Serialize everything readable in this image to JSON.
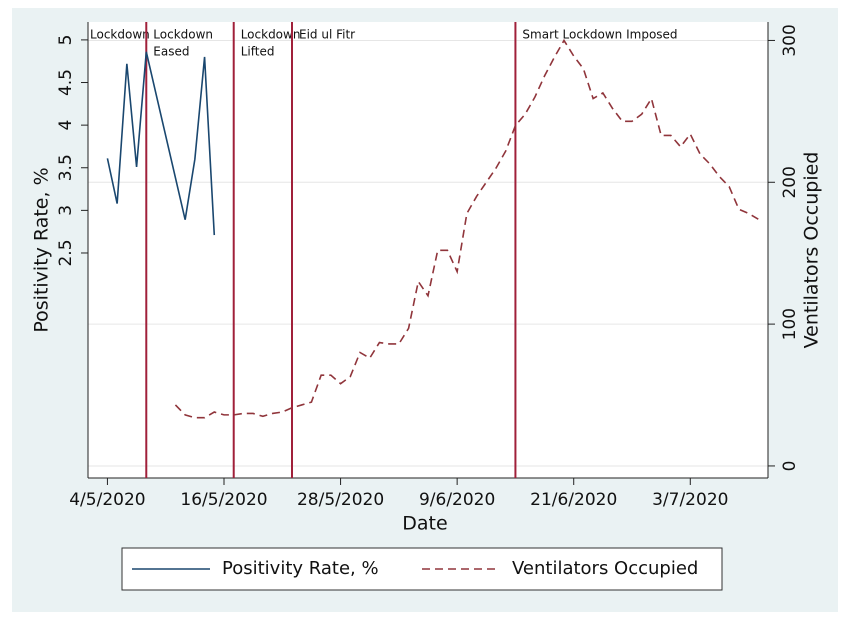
{
  "chart_data": {
    "type": "line",
    "xlabel": "Date",
    "ylabel": "Positivity Rate, %",
    "y2label": "Ventilators Occupied",
    "xlim": [
      "2020-05-02",
      "2020-07-11"
    ],
    "xticks": [
      {
        "value": "2020-05-04",
        "label": "4/5/2020"
      },
      {
        "value": "2020-05-16",
        "label": "16/5/2020"
      },
      {
        "value": "2020-05-28",
        "label": "28/5/2020"
      },
      {
        "value": "2020-06-09",
        "label": "9/6/2020"
      },
      {
        "value": "2020-06-21",
        "label": "21/6/2020"
      },
      {
        "value": "2020-07-03",
        "label": "3/7/2020"
      }
    ],
    "ylim": [
      -0.14,
      5.21
    ],
    "yticks": [
      2.5,
      3,
      3.5,
      4,
      4.5,
      5
    ],
    "y2lim": [
      -8.5,
      313
    ],
    "y2ticks": [
      0,
      100,
      200,
      300
    ],
    "grid": "y2",
    "legend": "bottom",
    "annotations": [
      {
        "text": [
          "Lockdown"
        ]
      },
      {
        "text": [
          "Lockdown",
          "Eased"
        ],
        "x": "2020-05-08",
        "color": "#a0203a"
      },
      {
        "text": [
          "Lockdown",
          "Lifted"
        ],
        "x": "2020-05-17",
        "color": "#a0203a"
      },
      {
        "text": [
          "Eid ul Fitr"
        ],
        "x": "2020-05-23",
        "color": "#a0203a"
      },
      {
        "text": [
          "Smart Lockdown Imposed"
        ],
        "x": "2020-06-15",
        "color": "#a0203a"
      }
    ],
    "series": [
      {
        "name": "Positivity Rate, %",
        "color": "#1a476f",
        "dash": false,
        "x": [
          "2020-05-04",
          "2020-05-05",
          "2020-05-06",
          "2020-05-07",
          "2020-05-08",
          "2020-05-12",
          "2020-05-13",
          "2020-05-14",
          "2020-05-15"
        ],
        "values": [
          3.61,
          3.08,
          4.72,
          3.51,
          4.86,
          2.89,
          3.6,
          4.8,
          2.71
        ]
      },
      {
        "name": "Ventilators Occupied",
        "color": "#90353b",
        "dash": true,
        "axis": "y2",
        "x": [
          "2020-05-11",
          "2020-05-12",
          "2020-05-13",
          "2020-05-14",
          "2020-05-15",
          "2020-05-16",
          "2020-05-17",
          "2020-05-18",
          "2020-05-19",
          "2020-05-20",
          "2020-05-21",
          "2020-05-22",
          "2020-05-23",
          "2020-05-24",
          "2020-05-25",
          "2020-05-26",
          "2020-05-27",
          "2020-05-28",
          "2020-05-29",
          "2020-05-30",
          "2020-05-31",
          "2020-06-01",
          "2020-06-02",
          "2020-06-03",
          "2020-06-04",
          "2020-06-05",
          "2020-06-06",
          "2020-06-07",
          "2020-06-08",
          "2020-06-09",
          "2020-06-10",
          "2020-06-11",
          "2020-06-12",
          "2020-06-13",
          "2020-06-14",
          "2020-06-15",
          "2020-06-16",
          "2020-06-17",
          "2020-06-18",
          "2020-06-19",
          "2020-06-20",
          "2020-06-21",
          "2020-06-22",
          "2020-06-23",
          "2020-06-24",
          "2020-06-25",
          "2020-06-26",
          "2020-06-27",
          "2020-06-28",
          "2020-06-29",
          "2020-06-30",
          "2020-07-01",
          "2020-07-02",
          "2020-07-03",
          "2020-07-04",
          "2020-07-05",
          "2020-07-06",
          "2020-07-07",
          "2020-07-08",
          "2020-07-09",
          "2020-07-10"
        ],
        "values": [
          43,
          36,
          34,
          34,
          38,
          36,
          36,
          37,
          37,
          35,
          37,
          38,
          41,
          43,
          45,
          64,
          64,
          58,
          63,
          80,
          76,
          87,
          86,
          86,
          97,
          130,
          120,
          152,
          152,
          137,
          178,
          190,
          200,
          210,
          222,
          240,
          248,
          260,
          275,
          288,
          300,
          289,
          280,
          259,
          263,
          252,
          243,
          243,
          248,
          259,
          233,
          233,
          225,
          234,
          220,
          213,
          204,
          197,
          181,
          178,
          174
        ]
      }
    ]
  }
}
